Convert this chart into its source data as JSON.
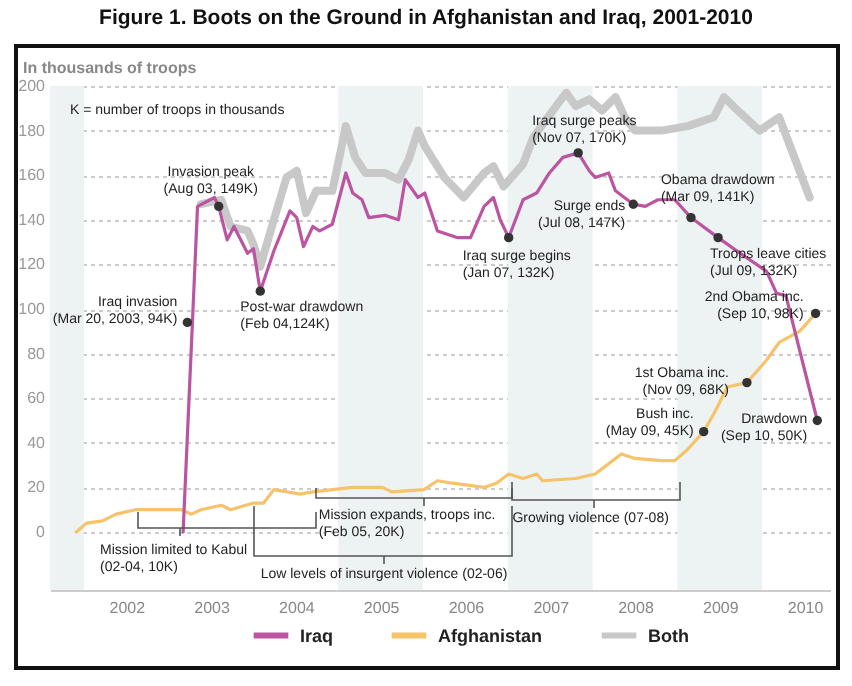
{
  "chart_data": {
    "type": "line",
    "title": "Figure 1. Boots on the Ground in Afghanistan and Iraq, 2001-2010",
    "ylabel": "In thousands of troops",
    "xlim": [
      2001.6,
      2010.8
    ],
    "ylim": [
      -26,
      200
    ],
    "xticks": [
      {
        "value": 2002.5,
        "label": "2002"
      },
      {
        "value": 2003.5,
        "label": "2003"
      },
      {
        "value": 2004.5,
        "label": "2004"
      },
      {
        "value": 2005.5,
        "label": "2005"
      },
      {
        "value": 2006.5,
        "label": "2006"
      },
      {
        "value": 2007.5,
        "label": "2007"
      },
      {
        "value": 2008.5,
        "label": "2008"
      },
      {
        "value": 2009.5,
        "label": "2009"
      },
      {
        "value": 2010.5,
        "label": "2010"
      }
    ],
    "yticks": [
      0,
      20,
      40,
      60,
      80,
      100,
      120,
      140,
      160,
      180,
      200
    ],
    "grid": "y",
    "legend": "bottom",
    "bands": [
      {
        "axis": "x",
        "from": 2001.6,
        "to": 2002.0,
        "color": "#edf2f2"
      },
      {
        "axis": "x",
        "from": 2005.0,
        "to": 2006.0,
        "color": "#edf2f2"
      },
      {
        "axis": "x",
        "from": 2007.0,
        "to": 2008.0,
        "color": "#edf2f2"
      },
      {
        "axis": "x",
        "from": 2009.0,
        "to": 2010.0,
        "color": "#edf2f2"
      }
    ],
    "series": [
      {
        "name": "Iraq",
        "color": "#bb55a2",
        "x": [
          2003.17,
          2003.28,
          2003.34,
          2003.54,
          2003.59,
          2003.69,
          2003.77,
          2003.93,
          2004.0,
          2004.08,
          2004.24,
          2004.43,
          2004.51,
          2004.59,
          2004.7,
          2004.78,
          2004.93,
          2005.09,
          2005.17,
          2005.28,
          2005.36,
          2005.55,
          2005.71,
          2005.79,
          2005.94,
          2006.02,
          2006.17,
          2006.41,
          2006.56,
          2006.72,
          2006.83,
          2006.91,
          2007.01,
          2007.18,
          2007.34,
          2007.49,
          2007.65,
          2007.83,
          2007.96,
          2008.03,
          2008.19,
          2008.27,
          2008.48,
          2008.62,
          2008.77,
          2008.97,
          2009.16,
          2009.48,
          2009.74,
          2010.05,
          2010.17,
          2010.28,
          2010.65
        ],
        "values": [
          0,
          94,
          146,
          150,
          146,
          131,
          137,
          125,
          127,
          108,
          126,
          144,
          141,
          128,
          137,
          135,
          138,
          161,
          152,
          149,
          141,
          142,
          140,
          158,
          150,
          152,
          135,
          132,
          132,
          146,
          150,
          140,
          132,
          149,
          152,
          161,
          168,
          170,
          162,
          159,
          161,
          153,
          147,
          146,
          149,
          149,
          141,
          132,
          125,
          117,
          107,
          106,
          50
        ]
      },
      {
        "name": "Afghanistan",
        "color": "#f6c36a",
        "x": [
          2001.91,
          2002.03,
          2002.22,
          2002.38,
          2002.61,
          2002.84,
          2003.15,
          2003.27,
          2003.38,
          2003.62,
          2003.73,
          2004.0,
          2004.12,
          2004.24,
          2004.55,
          2004.7,
          2004.93,
          2005.17,
          2005.52,
          2005.63,
          2006.01,
          2006.17,
          2006.33,
          2006.72,
          2006.87,
          2007.01,
          2007.18,
          2007.34,
          2007.41,
          2007.8,
          2008.03,
          2008.34,
          2008.5,
          2008.81,
          2008.97,
          2009.12,
          2009.31,
          2009.43,
          2009.59,
          2009.82,
          2010.05,
          2010.2,
          2010.44,
          2010.63
        ],
        "values": [
          0,
          4,
          5,
          8,
          10,
          10,
          10,
          8,
          10,
          12,
          10,
          13,
          13,
          19,
          17,
          18,
          19,
          20,
          20,
          18,
          19,
          23,
          22,
          20,
          22,
          26,
          24,
          26,
          23,
          24,
          26,
          35,
          33,
          32,
          32,
          37,
          45,
          53,
          65,
          67,
          77,
          85,
          90,
          98
        ]
      },
      {
        "name": "Both",
        "color": "#c8c8c8",
        "x": [
          2003.38,
          2003.62,
          2003.73,
          2003.93,
          2004.0,
          2004.08,
          2004.24,
          2004.39,
          2004.51,
          2004.62,
          2004.74,
          2004.93,
          2005.09,
          2005.2,
          2005.32,
          2005.55,
          2005.71,
          2005.83,
          2005.94,
          2006.02,
          2006.25,
          2006.48,
          2006.72,
          2006.83,
          2006.95,
          2007.18,
          2007.3,
          2007.57,
          2007.69,
          2007.8,
          2007.96,
          2008.11,
          2008.27,
          2008.38,
          2008.5,
          2008.81,
          2009.12,
          2009.43,
          2009.55,
          2009.74,
          2009.97,
          2010.2,
          2010.29,
          2010.56
        ],
        "values": [
          147,
          149,
          137,
          135,
          129,
          119,
          140,
          159,
          162,
          143,
          153,
          153,
          182,
          168,
          161,
          161,
          158,
          167,
          180,
          173,
          159,
          150,
          161,
          164,
          155,
          165,
          177,
          191,
          197,
          191,
          194,
          189,
          195,
          186,
          180,
          180,
          182,
          186,
          195,
          188,
          180,
          186,
          177,
          150
        ]
      }
    ],
    "annotations": [
      {
        "text": "Iraq invasion\n(Mar 20, 2003, 94K)",
        "x": 2003.22,
        "y": 94
      },
      {
        "text": "Invasion peak\n(Aug 03, 149K)",
        "x": 2003.59,
        "y": 146
      },
      {
        "text": "Post-war drawdown\n(Feb 04,124K)",
        "x": 2004.08,
        "y": 108
      },
      {
        "text": "Iraq surge begins\n(Jan 07, 132K)",
        "x": 2007.01,
        "y": 132
      },
      {
        "text": "Iraq surge peaks\n(Nov 07, 170K)",
        "x": 2007.83,
        "y": 170
      },
      {
        "text": "Surge ends\n(Jul 08, 147K)",
        "x": 2008.48,
        "y": 147
      },
      {
        "text": "Obama drawdown\n(Mar 09, 141K)",
        "x": 2009.16,
        "y": 141
      },
      {
        "text": "Troops leave cities\n(Jul 09, 132K)",
        "x": 2009.48,
        "y": 132
      },
      {
        "text": "2nd Obama inc.\n(Sep 10, 98K)",
        "x": 2010.63,
        "y": 98
      },
      {
        "text": "1st Obama inc.\n(Nov 09, 68K)",
        "x": 2009.82,
        "y": 67
      },
      {
        "text": "Bush inc.\n(May 09, 45K)",
        "x": 2009.31,
        "y": 45
      },
      {
        "text": "Drawdown\n(Sep 10, 50K)",
        "x": 2010.65,
        "y": 50
      },
      "K = number of troops in thousands",
      "Mission limited to Kabul\n(02-04, 10K)",
      {
        "text": "Mission expands, troops inc.\n(Feb 05, 20K)",
        "x": 2005.1,
        "y": 20
      },
      "Low levels of insurgent violence (02-06)",
      {
        "text": "Growing violence (07-08)",
        "x": 2008.0,
        "y": 24
      }
    ]
  }
}
